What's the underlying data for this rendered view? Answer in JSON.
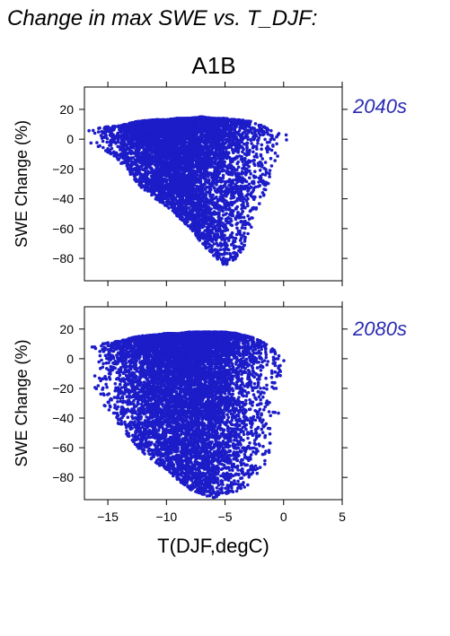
{
  "figure": {
    "title": "Change in max SWE vs. T_DJF:",
    "scenario": "A1B",
    "point_color": "#1c1cc8",
    "label_color": "#2a2ab4"
  },
  "chart_data": [
    {
      "type": "scatter",
      "name": "2040s",
      "xlabel": "",
      "ylabel": "SWE Change (%)",
      "xlim": [
        -17,
        5
      ],
      "ylim": [
        -95,
        35
      ],
      "xticks": [
        -15,
        -10,
        -5,
        0,
        5
      ],
      "yticks": [
        20,
        0,
        -20,
        -40,
        -60,
        -80
      ],
      "xtick_labels_visible": false,
      "grid": false,
      "envelope": {
        "x": [
          -17,
          -15.5,
          -14,
          -12.5,
          -11,
          -10,
          -9,
          -8,
          -7,
          -6,
          -5,
          -4,
          -3.5,
          -3,
          -2.5,
          -2,
          -1.5,
          -1,
          -0.5,
          0
        ],
        "y_max": [
          6,
          8,
          9,
          12,
          13,
          13,
          14,
          14,
          15,
          14,
          14,
          13,
          13,
          12,
          12,
          10,
          8,
          6,
          4,
          3
        ],
        "y_min": [
          -1,
          -6,
          -15,
          -30,
          -40,
          -45,
          -52,
          -60,
          -70,
          -78,
          -85,
          -80,
          -75,
          -65,
          -55,
          -45,
          -35,
          -25,
          -12,
          -3
        ]
      },
      "approx_point_count": 6000
    },
    {
      "type": "scatter",
      "name": "2080s",
      "xlabel": "T(DJF,degC)",
      "ylabel": "SWE Change (%)",
      "xlim": [
        -17,
        5
      ],
      "ylim": [
        -95,
        35
      ],
      "xticks": [
        -15,
        -10,
        -5,
        0,
        5
      ],
      "yticks": [
        20,
        0,
        -20,
        -40,
        -60,
        -80
      ],
      "xtick_labels_visible": true,
      "grid": false,
      "envelope": {
        "x": [
          -17,
          -15.5,
          -14,
          -12.5,
          -11,
          -10,
          -9,
          -8,
          -7,
          -6,
          -5,
          -4,
          -3.5,
          -3,
          -2.5,
          -2,
          -1.5,
          -1,
          -0.5,
          0
        ],
        "y_max": [
          8,
          10,
          12,
          15,
          16,
          17,
          17,
          18,
          18,
          18,
          18,
          17,
          16,
          15,
          14,
          12,
          10,
          7,
          4,
          2
        ],
        "y_min": [
          -20,
          -30,
          -45,
          -60,
          -70,
          -75,
          -82,
          -88,
          -92,
          -94,
          -92,
          -90,
          -88,
          -85,
          -82,
          -78,
          -70,
          -60,
          -40,
          -15
        ]
      },
      "approx_point_count": 8000
    }
  ]
}
